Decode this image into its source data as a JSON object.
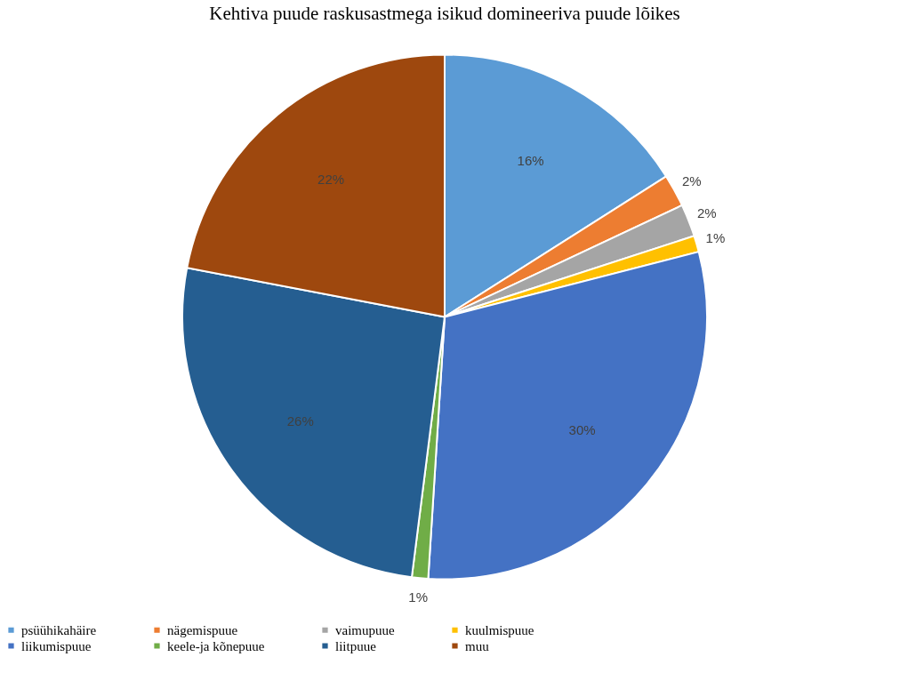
{
  "chart_data": {
    "type": "pie",
    "title": "Kehtiva puude raskusastmega isikud domineeriva puude lõikes",
    "categories": [
      "psüühikahäire",
      "nägemispuue",
      "vaimupuue",
      "kuulmispuue",
      "liikumispuue",
      "keele-ja kõnepuue",
      "liitpuue",
      "muu"
    ],
    "values": [
      16,
      2,
      2,
      1,
      30,
      1,
      26,
      22
    ],
    "colors": [
      "#5b9bd5",
      "#ed7d31",
      "#a5a5a5",
      "#ffc000",
      "#4472c4",
      "#70ad47",
      "#255e91",
      "#9e480e"
    ],
    "value_labels": [
      "16%",
      "2%",
      "2%",
      "1%",
      "30%",
      "1%",
      "26%",
      "22%"
    ],
    "legend": "bottom"
  }
}
